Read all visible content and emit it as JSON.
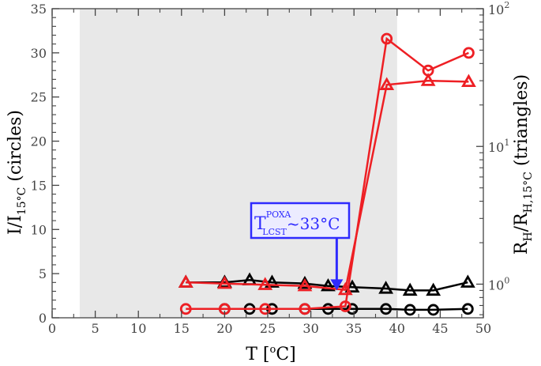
{
  "chart_data": {
    "type": "line",
    "x_axis": {
      "ticks": [
        "0",
        "5",
        "10",
        "15",
        "20",
        "25",
        "30",
        "35",
        "40",
        "45",
        "50"
      ],
      "lim": [
        0,
        50
      ]
    },
    "y_left": {
      "ticks": [
        "0",
        "5",
        "10",
        "15",
        "20",
        "25",
        "30",
        "35"
      ],
      "lim": [
        0,
        35
      ]
    },
    "y_right": {
      "scale": "log",
      "lim": [
        0.57,
        100
      ],
      "ticks": [
        {
          "value": 1,
          "base": "10",
          "exp": "0"
        },
        {
          "value": 10,
          "base": "10",
          "exp": "1"
        },
        {
          "value": 100,
          "base": "10",
          "exp": "2"
        }
      ]
    },
    "xlabel": {
      "main": "T [",
      "sup": "o",
      "tail": "C]"
    },
    "ylabel_left": {
      "main": "I/I",
      "sub": "15°C",
      "tail": " (circles)"
    },
    "ylabel_right": {
      "main": "R",
      "sub1": "H",
      "mid": "/R",
      "sub2": "H,15°C",
      "tail": " (triangles)"
    },
    "shaded_region": {
      "x": [
        3.2,
        40
      ],
      "color": "#e8e8e8"
    },
    "colors": {
      "black": "#000000",
      "red": "#ee1f24",
      "annotation": "#2e2aff",
      "box_fill": "#ececff"
    },
    "series": [
      {
        "axis": "left",
        "marker": "circle",
        "color": "#000000",
        "x": [
          20,
          22.9,
          25.5,
          29.3,
          32,
          34.8,
          38.7,
          41.5,
          44.2,
          48.2
        ],
        "y": [
          1.0,
          1.0,
          1.0,
          1.0,
          1.0,
          1.0,
          1.0,
          0.9,
          0.9,
          1.0
        ]
      },
      {
        "axis": "right",
        "marker": "triangle",
        "color": "#000000",
        "x": [
          15.5,
          20,
          22.9,
          25.5,
          29.3,
          32,
          34.8,
          38.7,
          41.5,
          44.2,
          48.2
        ],
        "y": [
          1.03,
          1.03,
          1.07,
          1.03,
          1.01,
          0.97,
          0.95,
          0.93,
          0.9,
          0.9,
          1.03
        ]
      },
      {
        "axis": "left",
        "marker": "circle",
        "color": "#ee1f24",
        "x": [
          15.5,
          20,
          24.7,
          29.3,
          34,
          38.8,
          43.6,
          48.3
        ],
        "y": [
          1.0,
          1.0,
          1.0,
          1.0,
          1.3,
          31.6,
          28.0,
          30.0
        ]
      },
      {
        "axis": "right",
        "marker": "triangle",
        "color": "#ee1f24",
        "x": [
          15.5,
          20,
          24.7,
          29.3,
          34,
          38.8,
          43.6,
          48.3
        ],
        "y": [
          1.03,
          1.01,
          0.99,
          0.97,
          0.91,
          28.0,
          30.0,
          29.5
        ]
      }
    ],
    "annotation": {
      "main": "T",
      "sup": "POXA",
      "sub": "LCST",
      "tail": "~33°C",
      "arrow_x": 33,
      "arrow_y": 3.1,
      "arrow_top_y": 9.1
    }
  }
}
